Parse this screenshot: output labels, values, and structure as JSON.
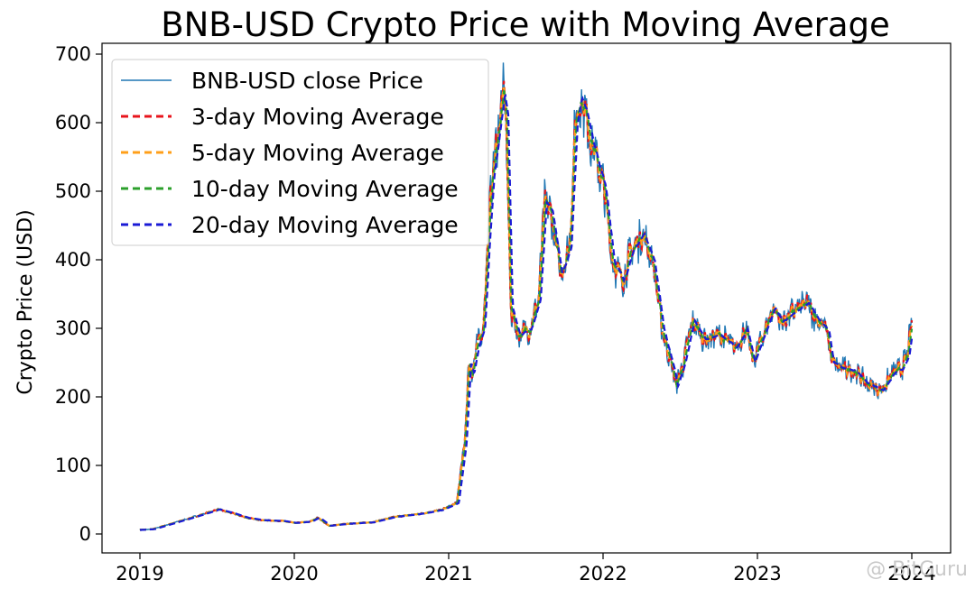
{
  "chart_data": {
    "type": "line",
    "title": "BNB-USD Crypto Price with Moving Average",
    "xlabel": "",
    "ylabel": "Crypto Price (USD)",
    "xlim": [
      2019.0,
      2024.0
    ],
    "ylim": [
      0,
      700
    ],
    "x_ticks": [
      "2019",
      "2020",
      "2021",
      "2022",
      "2023",
      "2024"
    ],
    "y_ticks": [
      "0",
      "100",
      "200",
      "300",
      "400",
      "500",
      "600",
      "700"
    ],
    "grid": false,
    "legend_position": "top-left",
    "price_keypoints": [
      [
        2019.0,
        6
      ],
      [
        2019.08,
        7
      ],
      [
        2019.2,
        15
      ],
      [
        2019.35,
        25
      ],
      [
        2019.48,
        34
      ],
      [
        2019.5,
        36
      ],
      [
        2019.6,
        30
      ],
      [
        2019.7,
        23
      ],
      [
        2019.8,
        20
      ],
      [
        2019.92,
        19
      ],
      [
        2020.0,
        16
      ],
      [
        2020.1,
        18
      ],
      [
        2020.15,
        24
      ],
      [
        2020.22,
        12
      ],
      [
        2020.35,
        15
      ],
      [
        2020.5,
        17
      ],
      [
        2020.65,
        25
      ],
      [
        2020.8,
        29
      ],
      [
        2020.95,
        35
      ],
      [
        2021.05,
        45
      ],
      [
        2021.1,
        130
      ],
      [
        2021.13,
        250
      ],
      [
        2021.15,
        235
      ],
      [
        2021.18,
        270
      ],
      [
        2021.22,
        300
      ],
      [
        2021.25,
        420
      ],
      [
        2021.28,
        520
      ],
      [
        2021.32,
        590
      ],
      [
        2021.35,
        640
      ],
      [
        2021.37,
        610
      ],
      [
        2021.4,
        330
      ],
      [
        2021.45,
        290
      ],
      [
        2021.52,
        300
      ],
      [
        2021.58,
        340
      ],
      [
        2021.62,
        480
      ],
      [
        2021.66,
        470
      ],
      [
        2021.72,
        380
      ],
      [
        2021.78,
        420
      ],
      [
        2021.82,
        600
      ],
      [
        2021.85,
        640
      ],
      [
        2021.88,
        620
      ],
      [
        2021.92,
        580
      ],
      [
        2021.96,
        540
      ],
      [
        2022.0,
        510
      ],
      [
        2022.06,
        400
      ],
      [
        2022.12,
        370
      ],
      [
        2022.18,
        410
      ],
      [
        2022.25,
        440
      ],
      [
        2022.32,
        400
      ],
      [
        2022.38,
        300
      ],
      [
        2022.45,
        240
      ],
      [
        2022.47,
        215
      ],
      [
        2022.52,
        250
      ],
      [
        2022.58,
        310
      ],
      [
        2022.65,
        285
      ],
      [
        2022.75,
        290
      ],
      [
        2022.85,
        270
      ],
      [
        2022.92,
        300
      ],
      [
        2022.97,
        250
      ],
      [
        2023.05,
        300
      ],
      [
        2023.1,
        330
      ],
      [
        2023.15,
        310
      ],
      [
        2023.25,
        325
      ],
      [
        2023.32,
        335
      ],
      [
        2023.4,
        310
      ],
      [
        2023.45,
        295
      ],
      [
        2023.48,
        250
      ],
      [
        2023.55,
        240
      ],
      [
        2023.62,
        240
      ],
      [
        2023.7,
        220
      ],
      [
        2023.8,
        210
      ],
      [
        2023.88,
        235
      ],
      [
        2023.93,
        240
      ],
      [
        2023.97,
        260
      ],
      [
        2024.0,
        310
      ]
    ],
    "series": [
      {
        "name": "BNB-USD close Price",
        "color": "#1f77b4",
        "dash": "solid",
        "lag": 0,
        "noise": 1.0
      },
      {
        "name": "3-day Moving Average",
        "color": "#e8141c",
        "dash": "dashed",
        "lag": 0.002,
        "noise": 0.72
      },
      {
        "name": "5-day Moving Average",
        "color": "#ff9f1a",
        "dash": "dashed",
        "lag": 0.004,
        "noise": 0.58
      },
      {
        "name": "10-day Moving Average",
        "color": "#2ca02c",
        "dash": "dashed",
        "lag": 0.008,
        "noise": 0.42
      },
      {
        "name": "20-day Moving Average",
        "color": "#1b1bd6",
        "dash": "dashed",
        "lag": 0.016,
        "noise": 0.25
      }
    ]
  },
  "watermark": "@ BitGuru"
}
